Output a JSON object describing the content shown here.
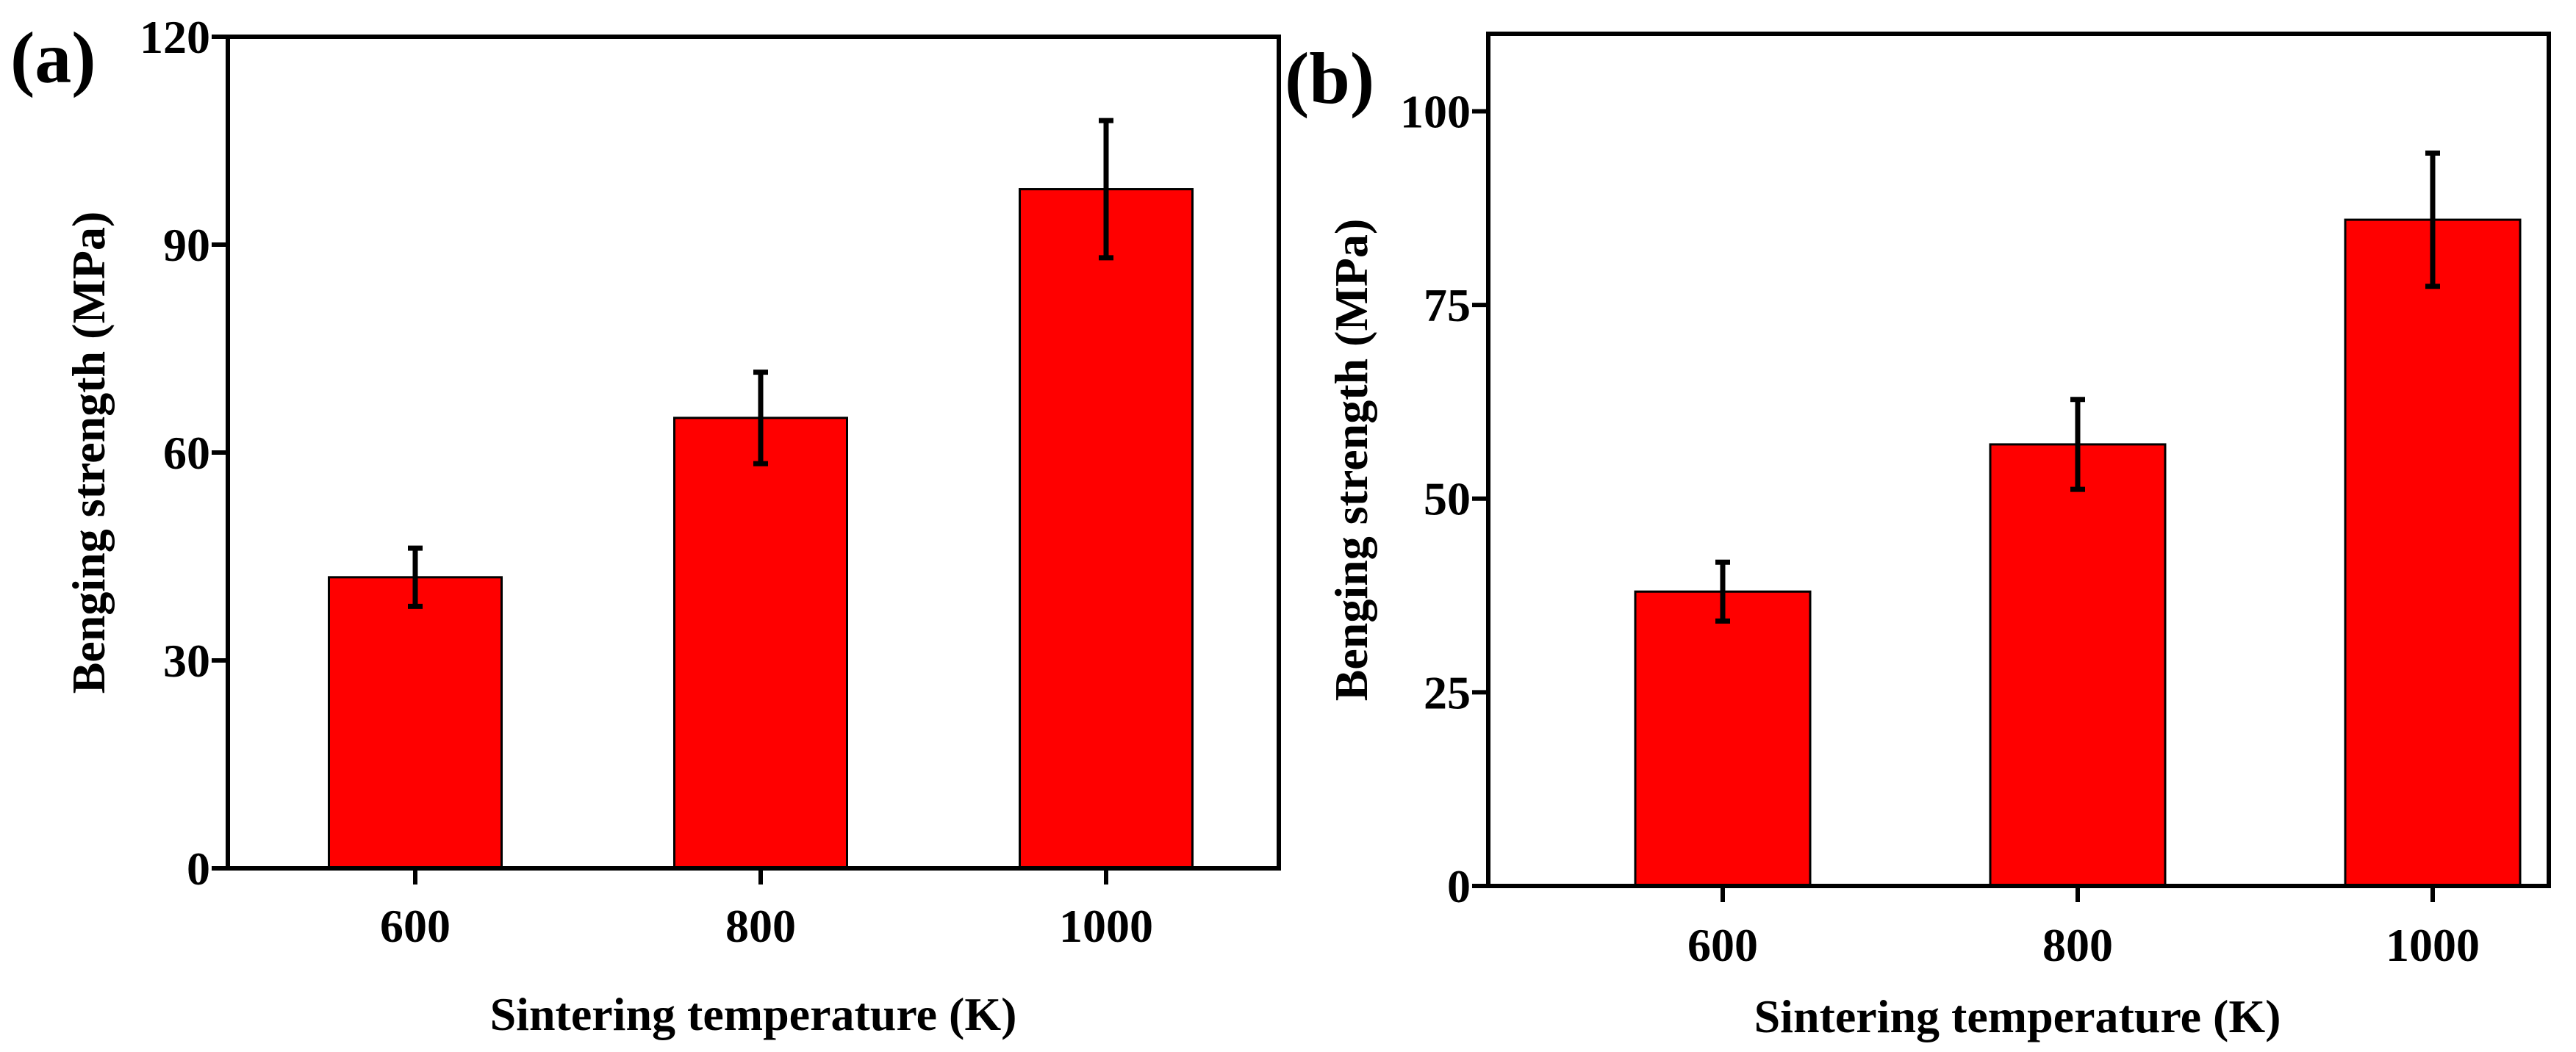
{
  "chart_data": [
    {
      "panel_label": "(a)",
      "type": "bar",
      "categories": [
        "600",
        "800",
        "1000"
      ],
      "series": [
        {
          "name": "Benging strength",
          "values": [
            42,
            65,
            98
          ],
          "errors": [
            4.2,
            6.6,
            9.9
          ]
        }
      ],
      "xlabel": "Sintering temperature (K)",
      "ylabel": "Benging strength  (MPa)",
      "ylim": [
        0,
        120
      ],
      "yticks": [
        "0",
        "30",
        "60",
        "90",
        "120"
      ],
      "ytick_values": [
        0,
        30,
        60,
        90,
        120
      ],
      "grid": false,
      "bar_color": "#ff0000"
    },
    {
      "panel_label": "(b)",
      "type": "bar",
      "categories": [
        "600",
        "800",
        "1000"
      ],
      "series": [
        {
          "name": "Benging strength",
          "values": [
            38,
            57,
            86
          ],
          "errors": [
            3.8,
            5.8,
            8.6
          ]
        }
      ],
      "xlabel": "Sintering temperature (K)",
      "ylabel": "Benging strength  (MPa)",
      "ylim": [
        0,
        110
      ],
      "yticks": [
        "0",
        "25",
        "50",
        "75",
        "100"
      ],
      "ytick_values": [
        0,
        25,
        50,
        75,
        100
      ],
      "grid": false,
      "bar_color": "#ff0000"
    }
  ]
}
